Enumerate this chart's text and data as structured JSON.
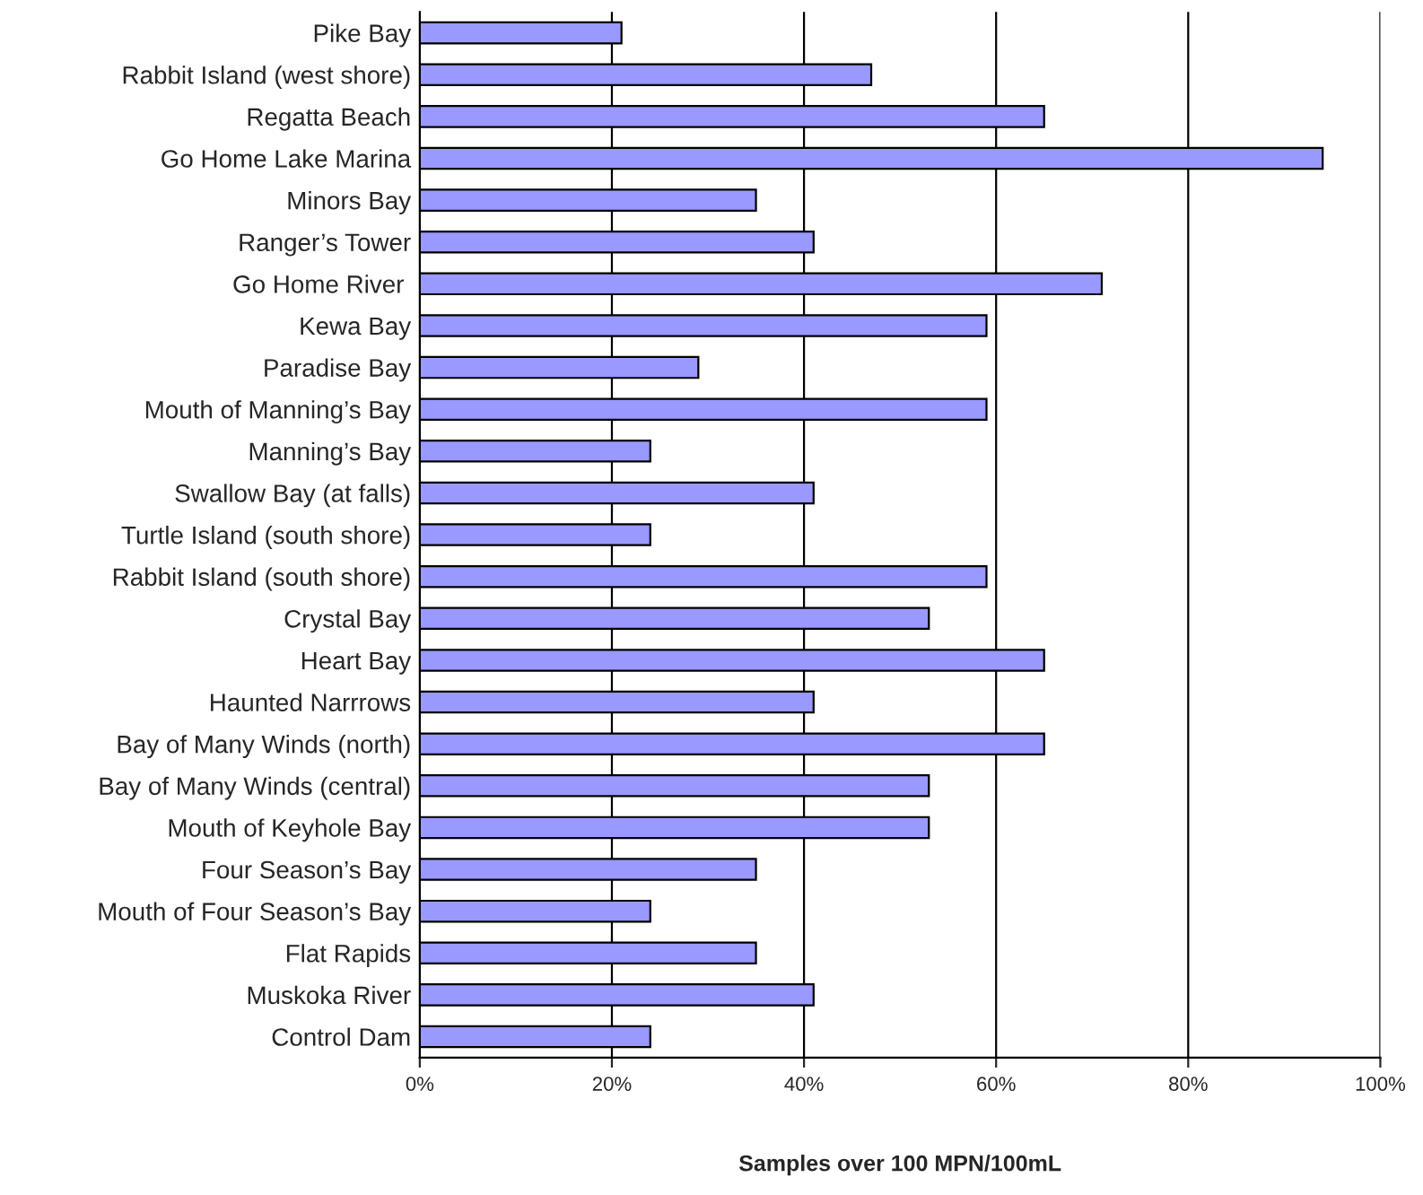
{
  "chart_data": {
    "type": "bar",
    "orientation": "horizontal",
    "xlabel": "Samples over 100 MPN/100mL",
    "categories": [
      "Pike Bay",
      "Rabbit Island (west shore)",
      "Regatta Beach",
      "Go Home Lake Marina",
      "Minors Bay",
      "Ranger’s Tower",
      "Go Home River ",
      "Kewa Bay",
      "Paradise Bay",
      "Mouth of Manning’s Bay",
      "Manning’s Bay",
      "Swallow Bay (at falls)",
      "Turtle Island (south shore)",
      "Rabbit Island (south shore)",
      "Crystal Bay",
      "Heart Bay",
      "Haunted Narrrows",
      "Bay of Many Winds (north)",
      "Bay of Many Winds (central)",
      "Mouth of Keyhole Bay",
      "Four Season’s Bay",
      "Mouth of Four Season’s Bay",
      "Flat Rapids",
      "Muskoka River",
      "Control Dam"
    ],
    "values": [
      21,
      47,
      65,
      94,
      35,
      41,
      71,
      59,
      29,
      59,
      24,
      41,
      24,
      59,
      53,
      65,
      41,
      65,
      53,
      53,
      35,
      24,
      35,
      41,
      24
    ],
    "color": "#9999ff",
    "xlim": [
      0,
      100
    ],
    "xticks": [
      {
        "value": 0,
        "label": "0%"
      },
      {
        "value": 20,
        "label": "20%"
      },
      {
        "value": 40,
        "label": "40%"
      },
      {
        "value": 60,
        "label": "60%"
      },
      {
        "value": 80,
        "label": "80%"
      },
      {
        "value": 100,
        "label": "100%"
      }
    ],
    "grid": "x",
    "legend": false
  }
}
